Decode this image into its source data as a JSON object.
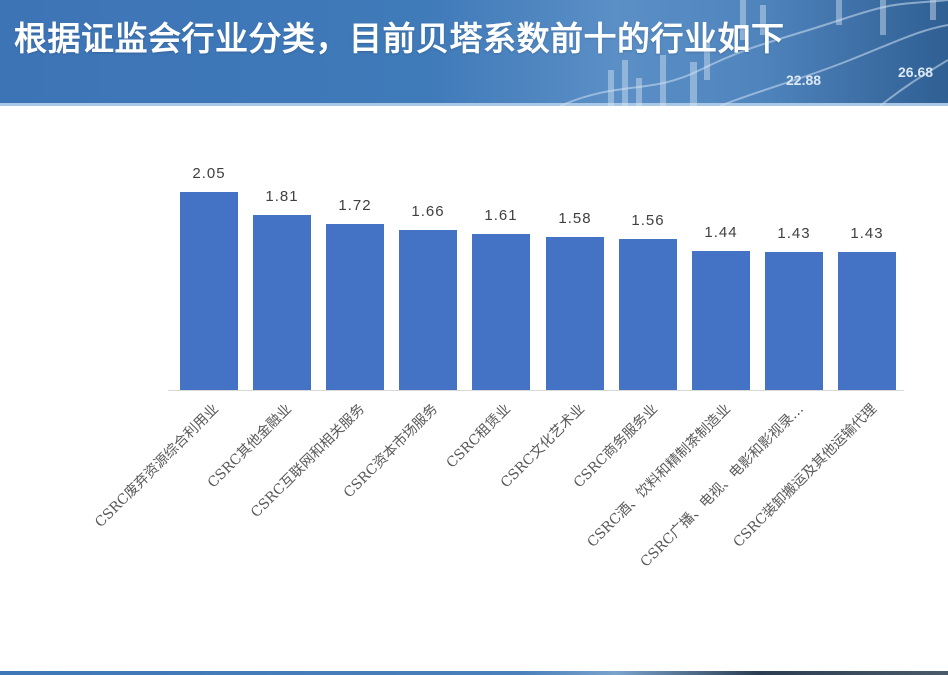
{
  "header": {
    "title": "根据证监会行业分类，目前贝塔系数前十的行业如下",
    "decor_numbers": [
      "22.88",
      "26.68"
    ]
  },
  "colors": {
    "header_blue": "#3d74b6",
    "bar": "#4472c4",
    "label_text": "#404040",
    "axis_text": "#595959"
  },
  "chart_data": {
    "type": "bar",
    "title": "",
    "xlabel": "",
    "ylabel": "",
    "ylim": [
      0,
      2.3
    ],
    "grid": false,
    "legend": null,
    "data_labels": true,
    "categories": [
      "CSRC废弃资源综合利用业",
      "CSRC其他金融业",
      "CSRC互联网和相关服务",
      "CSRC资本市场服务",
      "CSRC租赁业",
      "CSRC文化艺术业",
      "CSRC商务服务业",
      "CSRC酒、饮料和精制茶制造业",
      "CSRC广播、电视、电影和影视录…",
      "CSRC装卸搬运及其他运输代理"
    ],
    "values": [
      2.05,
      1.81,
      1.72,
      1.66,
      1.61,
      1.58,
      1.56,
      1.44,
      1.43,
      1.43
    ],
    "value_labels": [
      "2.05",
      "1.81",
      "1.72",
      "1.66",
      "1.61",
      "1.58",
      "1.56",
      "1.44",
      "1.43",
      "1.43"
    ]
  }
}
